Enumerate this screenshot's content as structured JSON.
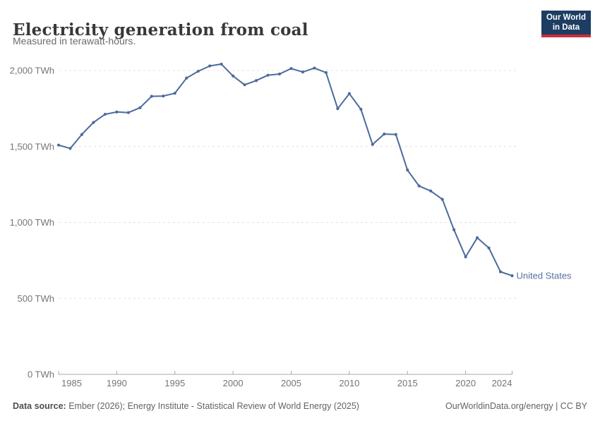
{
  "header": {
    "title": "Electricity generation from coal",
    "subtitle": "Measured in terawatt-hours."
  },
  "logo": {
    "line1": "Our World",
    "line2": "in Data"
  },
  "chart_data": {
    "type": "line",
    "title": "Electricity generation from coal",
    "unit": "TWh",
    "entity": "United States",
    "x": [
      1985,
      1986,
      1987,
      1988,
      1989,
      1990,
      1991,
      1992,
      1993,
      1994,
      1995,
      1996,
      1997,
      1998,
      1999,
      2000,
      2001,
      2002,
      2003,
      2004,
      2005,
      2006,
      2007,
      2008,
      2009,
      2010,
      2011,
      2012,
      2013,
      2014,
      2015,
      2016,
      2017,
      2018,
      2019,
      2020,
      2021,
      2022,
      2023,
      2024
    ],
    "series": [
      {
        "name": "United States",
        "values": [
          1509,
          1487,
          1579,
          1658,
          1712,
          1727,
          1723,
          1755,
          1830,
          1832,
          1850,
          1950,
          1995,
          2030,
          2042,
          1964,
          1906,
          1934,
          1969,
          1977,
          2013,
          1990,
          2016,
          1986,
          1749,
          1848,
          1745,
          1513,
          1582,
          1579,
          1345,
          1240,
          1207,
          1152,
          952,
          773,
          899,
          832,
          675,
          649
        ]
      }
    ],
    "ylim": [
      0,
      2000
    ],
    "yticks": [
      {
        "value": 0,
        "label": "0 TWh"
      },
      {
        "value": 500,
        "label": "500 TWh"
      },
      {
        "value": 1000,
        "label": "1,000 TWh"
      },
      {
        "value": 1500,
        "label": "1,500 TWh"
      },
      {
        "value": 2000,
        "label": "2,000 TWh"
      }
    ],
    "xticks": [
      1985,
      1990,
      1995,
      2000,
      2005,
      2010,
      2015,
      2020,
      2024
    ],
    "grid": "horizontal-dashed",
    "legend_position": "end-of-line-label",
    "end_label": "United States"
  },
  "footer": {
    "source_label": "Data source:",
    "source_text": " Ember (2026); Energy Institute - Statistical Review of World Energy (2025)",
    "right_text": "OurWorldinData.org/energy | CC BY"
  },
  "colors": {
    "series": "#4C6A9C",
    "end_label": "#58709e",
    "grid": "#e0e0e0",
    "axis": "#a8a8a8",
    "tick_text": "#757575",
    "logo_bg": "#1d3d63",
    "logo_bar": "#c9303c"
  }
}
